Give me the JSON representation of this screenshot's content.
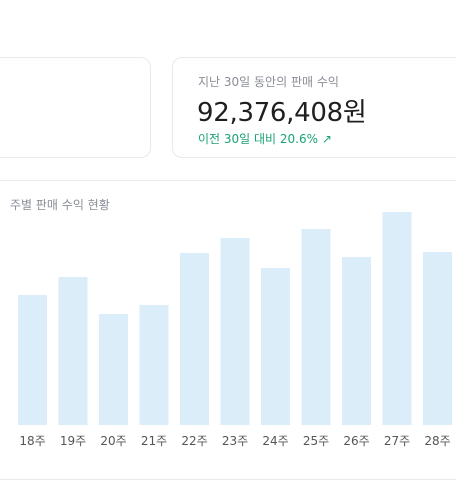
{
  "summary_card": {
    "label": "지난 30일 동안의 판매 수익",
    "value": "92,376,408원",
    "change": "이전 30일 대비 20.6% ↗"
  },
  "chart": {
    "title": "주별 판매 수익 현황"
  },
  "chart_data": {
    "type": "bar",
    "title": "주별 판매 수익 현황",
    "categories": [
      "18주",
      "19주",
      "20주",
      "21주",
      "22주",
      "23주",
      "24주",
      "25주",
      "26주",
      "27주",
      "28주"
    ],
    "values": [
      130,
      148,
      111,
      120,
      172,
      187,
      157,
      196,
      168,
      213,
      173
    ],
    "ylim": [
      0,
      230
    ],
    "grid": false,
    "bar_color": "#dbedf9"
  },
  "colors": {
    "positive": "#1aa374",
    "muted_text": "#8a8d96",
    "border": "#e7e9ee"
  }
}
